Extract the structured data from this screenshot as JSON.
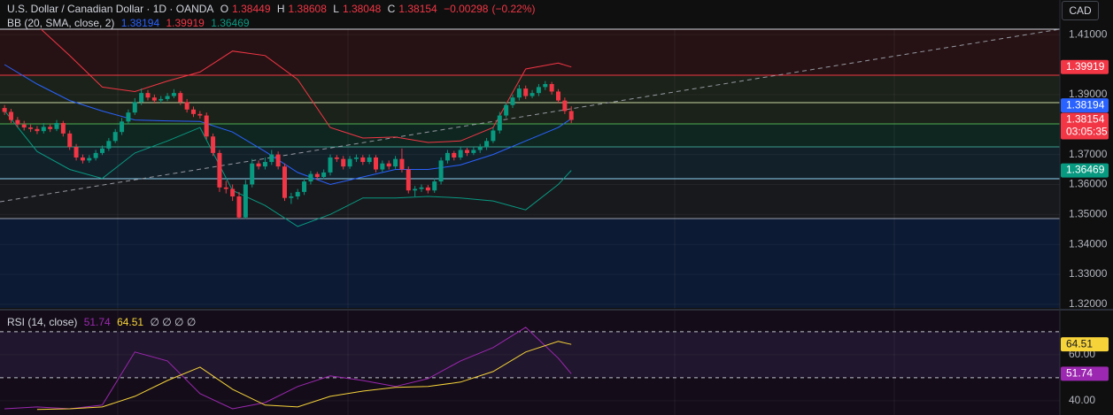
{
  "chart_data": {
    "type": "candlestick",
    "title": "U.S. Dollar / Canadian Dollar · 1D · OANDA",
    "ohlc_labels": [
      "O",
      "H",
      "L",
      "C"
    ],
    "change": {
      "value": -0.00298,
      "label": "−0.00298"
    },
    "change_pct": {
      "value": -0.22,
      "label": "(−0.22%)"
    },
    "currency": "CAD",
    "countdown": "03:05:35",
    "xlim": [
      -0.7,
      162
    ],
    "ylim": [
      1.3188,
      1.4118
    ],
    "yticks": [
      {
        "value": 1.41,
        "label": "1.41000"
      },
      {
        "value": 1.39,
        "label": "1.39000"
      },
      {
        "value": 1.37,
        "label": "1.37000"
      },
      {
        "value": 1.36,
        "label": "1.36000"
      },
      {
        "value": 1.35,
        "label": "1.35000"
      },
      {
        "value": 1.34,
        "label": "1.34000"
      },
      {
        "value": 1.33,
        "label": "1.33000"
      },
      {
        "value": 1.32,
        "label": "1.32000"
      }
    ],
    "up_color": "#089981",
    "down_color": "#f23645",
    "open": [
      1.3855,
      1.3842,
      1.3815,
      1.38,
      1.379,
      1.3785,
      1.3778,
      1.3792,
      1.3785,
      1.3805,
      1.377,
      1.3725,
      1.369,
      1.368,
      1.3688,
      1.3705,
      1.372,
      1.3745,
      1.3775,
      1.381,
      1.384,
      1.3875,
      1.3905,
      1.389,
      1.388,
      1.3885,
      1.3895,
      1.3905,
      1.3875,
      1.385,
      1.3835,
      1.383,
      1.376,
      1.3705,
      1.359,
      1.3585,
      1.356,
      1.349,
      1.36,
      1.367,
      1.366,
      1.3675,
      1.37,
      1.366,
      1.3555,
      1.356,
      1.3575,
      1.361,
      1.3635,
      1.3625,
      1.364,
      1.369,
      1.3685,
      1.366,
      1.3685,
      1.369,
      1.3675,
      1.369,
      1.365,
      1.367,
      1.366,
      1.3685,
      1.365,
      1.358,
      1.3585,
      1.359,
      1.358,
      1.361,
      1.368,
      1.3705,
      1.369,
      1.3715,
      1.3705,
      1.3715,
      1.3725,
      1.3745,
      1.378,
      1.383,
      1.3865,
      1.389,
      1.392,
      1.3895,
      1.3905,
      1.3925,
      1.3935,
      1.391,
      1.388,
      1.38449
    ],
    "high": [
      1.3865,
      1.3852,
      1.3825,
      1.3812,
      1.38,
      1.3795,
      1.3805,
      1.38,
      1.3815,
      1.3812,
      1.378,
      1.3735,
      1.37,
      1.3698,
      1.3715,
      1.373,
      1.3755,
      1.3785,
      1.3822,
      1.385,
      1.3888,
      1.392,
      1.3915,
      1.39,
      1.3895,
      1.3905,
      1.3918,
      1.3912,
      1.3885,
      1.386,
      1.3845,
      1.384,
      1.377,
      1.3715,
      1.3612,
      1.36,
      1.3575,
      1.3615,
      1.3685,
      1.368,
      1.369,
      1.3715,
      1.371,
      1.367,
      1.3572,
      1.3585,
      1.362,
      1.3645,
      1.3642,
      1.365,
      1.37,
      1.3698,
      1.3695,
      1.3695,
      1.37,
      1.3698,
      1.37,
      1.3698,
      1.368,
      1.368,
      1.3695,
      1.372,
      1.366,
      1.3595,
      1.36,
      1.3598,
      1.362,
      1.369,
      1.3715,
      1.3712,
      1.3725,
      1.3722,
      1.3725,
      1.3735,
      1.3755,
      1.379,
      1.3842,
      1.3875,
      1.39,
      1.3932,
      1.393,
      1.3915,
      1.3935,
      1.3945,
      1.3942,
      1.3918,
      1.389,
      1.38608
    ],
    "low": [
      1.3832,
      1.3805,
      1.379,
      1.378,
      1.3775,
      1.3768,
      1.377,
      1.3775,
      1.3778,
      1.376,
      1.3715,
      1.368,
      1.367,
      1.3672,
      1.368,
      1.3698,
      1.3712,
      1.3738,
      1.3765,
      1.38,
      1.3832,
      1.3865,
      1.388,
      1.387,
      1.3872,
      1.3878,
      1.3888,
      1.3865,
      1.384,
      1.3825,
      1.382,
      1.375,
      1.3695,
      1.3575,
      1.357,
      1.3545,
      1.3485,
      1.3485,
      1.359,
      1.365,
      1.365,
      1.3665,
      1.365,
      1.3545,
      1.3535,
      1.355,
      1.3565,
      1.36,
      1.3615,
      1.3618,
      1.363,
      1.3675,
      1.365,
      1.3652,
      1.3675,
      1.3665,
      1.3668,
      1.364,
      1.3642,
      1.365,
      1.3652,
      1.364,
      1.357,
      1.356,
      1.3575,
      1.357,
      1.3572,
      1.36,
      1.367,
      1.368,
      1.3682,
      1.3695,
      1.3698,
      1.3705,
      1.3715,
      1.3738,
      1.377,
      1.3822,
      1.3855,
      1.388,
      1.3885,
      1.3888,
      1.3895,
      1.3915,
      1.39,
      1.387,
      1.3835,
      1.38048
    ],
    "close": [
      1.3842,
      1.3815,
      1.38,
      1.379,
      1.3785,
      1.3778,
      1.3792,
      1.3785,
      1.3805,
      1.377,
      1.3725,
      1.369,
      1.368,
      1.3688,
      1.3705,
      1.372,
      1.3745,
      1.3775,
      1.381,
      1.384,
      1.3875,
      1.3905,
      1.389,
      1.388,
      1.3885,
      1.3895,
      1.3905,
      1.3875,
      1.385,
      1.3835,
      1.383,
      1.376,
      1.3705,
      1.359,
      1.3585,
      1.356,
      1.349,
      1.36,
      1.367,
      1.366,
      1.3675,
      1.37,
      1.366,
      1.3555,
      1.356,
      1.3575,
      1.361,
      1.3635,
      1.3625,
      1.364,
      1.369,
      1.3685,
      1.366,
      1.3685,
      1.369,
      1.3675,
      1.369,
      1.365,
      1.367,
      1.366,
      1.3685,
      1.365,
      1.358,
      1.3585,
      1.359,
      1.358,
      1.361,
      1.368,
      1.3705,
      1.369,
      1.3715,
      1.3705,
      1.3715,
      1.3725,
      1.3745,
      1.378,
      1.383,
      1.3865,
      1.389,
      1.392,
      1.3895,
      1.3905,
      1.3925,
      1.3935,
      1.391,
      1.388,
      1.3845,
      1.38154
    ],
    "indicators": [
      {
        "name": "BB (20, SMA, close, 2)",
        "x": [
          0,
          5,
          10,
          15,
          20,
          25,
          30,
          35,
          40,
          45,
          50,
          55,
          60,
          65,
          70,
          75,
          80,
          85,
          87
        ],
        "series": [
          {
            "color": "#2962ff",
            "values": [
              1.4,
              1.3935,
              1.388,
              1.3845,
              1.3815,
              1.3812,
              1.381,
              1.3775,
              1.371,
              1.364,
              1.36,
              1.3625,
              1.365,
              1.365,
              1.3665,
              1.37,
              1.3745,
              1.379,
              1.38194
            ]
          },
          {
            "color": "#f23645",
            "values": [
              1.42,
              1.413,
              1.403,
              1.3925,
              1.391,
              1.3945,
              1.3975,
              1.4045,
              1.403,
              1.395,
              1.379,
              1.3755,
              1.3758,
              1.374,
              1.3745,
              1.379,
              1.3985,
              1.4005,
              1.39919
            ]
          },
          {
            "color": "#089981",
            "values": [
              1.3846,
              1.371,
              1.365,
              1.362,
              1.3705,
              1.3745,
              1.379,
              1.358,
              1.353,
              1.346,
              1.35,
              1.3555,
              1.3555,
              1.356,
              1.3555,
              1.3545,
              1.3515,
              1.36,
              1.36469
            ]
          }
        ]
      }
    ],
    "rsi": {
      "name": "RSI (14, close)",
      "placeholders": "∅ ∅ ∅ ∅",
      "x": [
        0,
        5,
        10,
        15,
        20,
        25,
        30,
        35,
        40,
        45,
        50,
        55,
        60,
        65,
        70,
        75,
        80,
        85,
        87
      ],
      "series": [
        {
          "color": "#9c27b0",
          "values": [
            36.5,
            37.3,
            36.5,
            38.1,
            61.2,
            57.3,
            43.1,
            36.5,
            39.2,
            46.2,
            50.8,
            48.8,
            46.2,
            49.6,
            57.3,
            63.1,
            71.9,
            58.5,
            51.74
          ]
        },
        {
          "color": "#f7d33a",
          "values": [
            null,
            36.2,
            36.5,
            37.3,
            41.9,
            48.8,
            54.6,
            45.0,
            38.1,
            37.3,
            41.9,
            44.2,
            45.8,
            46.2,
            48.1,
            52.7,
            61.2,
            65.8,
            64.51
          ]
        }
      ],
      "ylim": [
        33.8,
        78.8
      ],
      "yticks": [
        {
          "value": 60,
          "label": "60.00"
        },
        {
          "value": 40,
          "label": "40.00"
        }
      ],
      "levels": [
        70,
        50
      ]
    }
  }
}
